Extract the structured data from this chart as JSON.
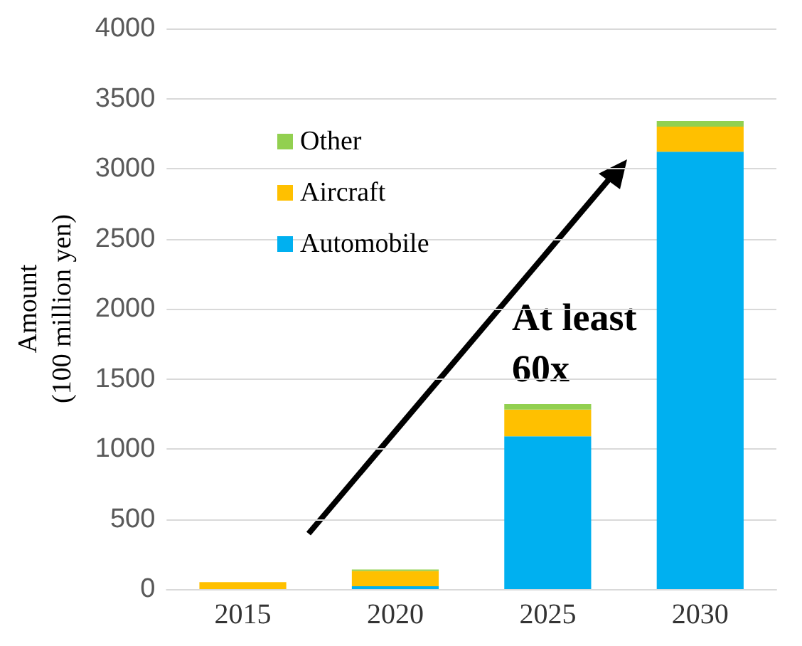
{
  "chart_data": {
    "type": "bar",
    "stacked": true,
    "ylabel": "Amount\n(100 million yen)",
    "categories": [
      "2015",
      "2020",
      "2025",
      "2030"
    ],
    "series": [
      {
        "name": "Automobile",
        "color": "#00b0f0",
        "values": [
          0,
          20,
          1090,
          3120
        ]
      },
      {
        "name": "Aircraft",
        "color": "#ffc000",
        "values": [
          50,
          110,
          190,
          180
        ]
      },
      {
        "name": "Other",
        "color": "#92d050",
        "values": [
          0,
          10,
          40,
          40
        ]
      }
    ],
    "ylim": [
      0,
      4000
    ],
    "yticks": [
      0,
      500,
      1000,
      1500,
      2000,
      2500,
      3000,
      3500,
      4000
    ],
    "grid": "y",
    "legend": "top left",
    "annotations": [
      "At least\n60x"
    ]
  }
}
